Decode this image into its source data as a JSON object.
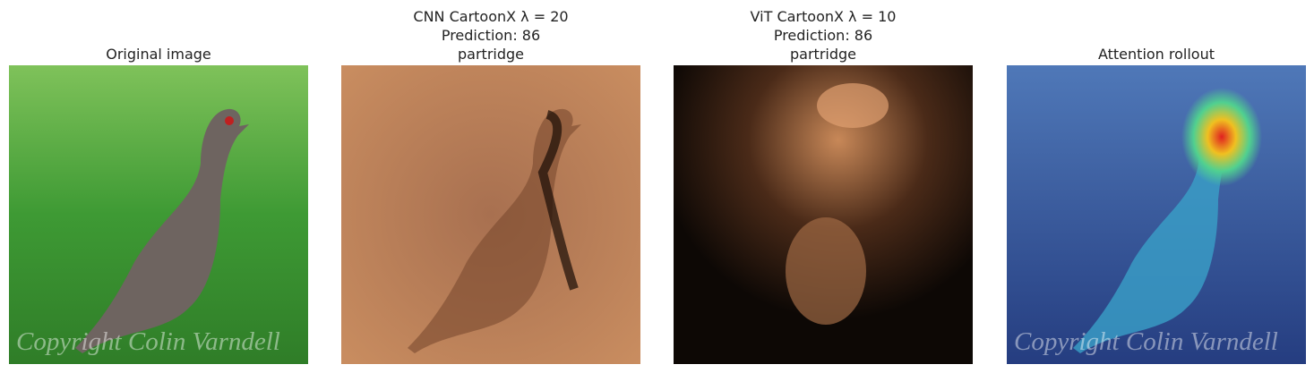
{
  "panels": [
    {
      "title_lines": [
        "Original image"
      ],
      "watermark": "Copyright Colin Varndell"
    },
    {
      "title_lines": [
        "CNN CartoonX λ = 20",
        "Prediction: 86",
        "partridge"
      ]
    },
    {
      "title_lines": [
        "ViT CartoonX λ = 10",
        "Prediction: 86",
        "partridge"
      ]
    },
    {
      "title_lines": [
        "Attention rollout"
      ],
      "watermark": "Copyright Colin Varndell"
    }
  ]
}
